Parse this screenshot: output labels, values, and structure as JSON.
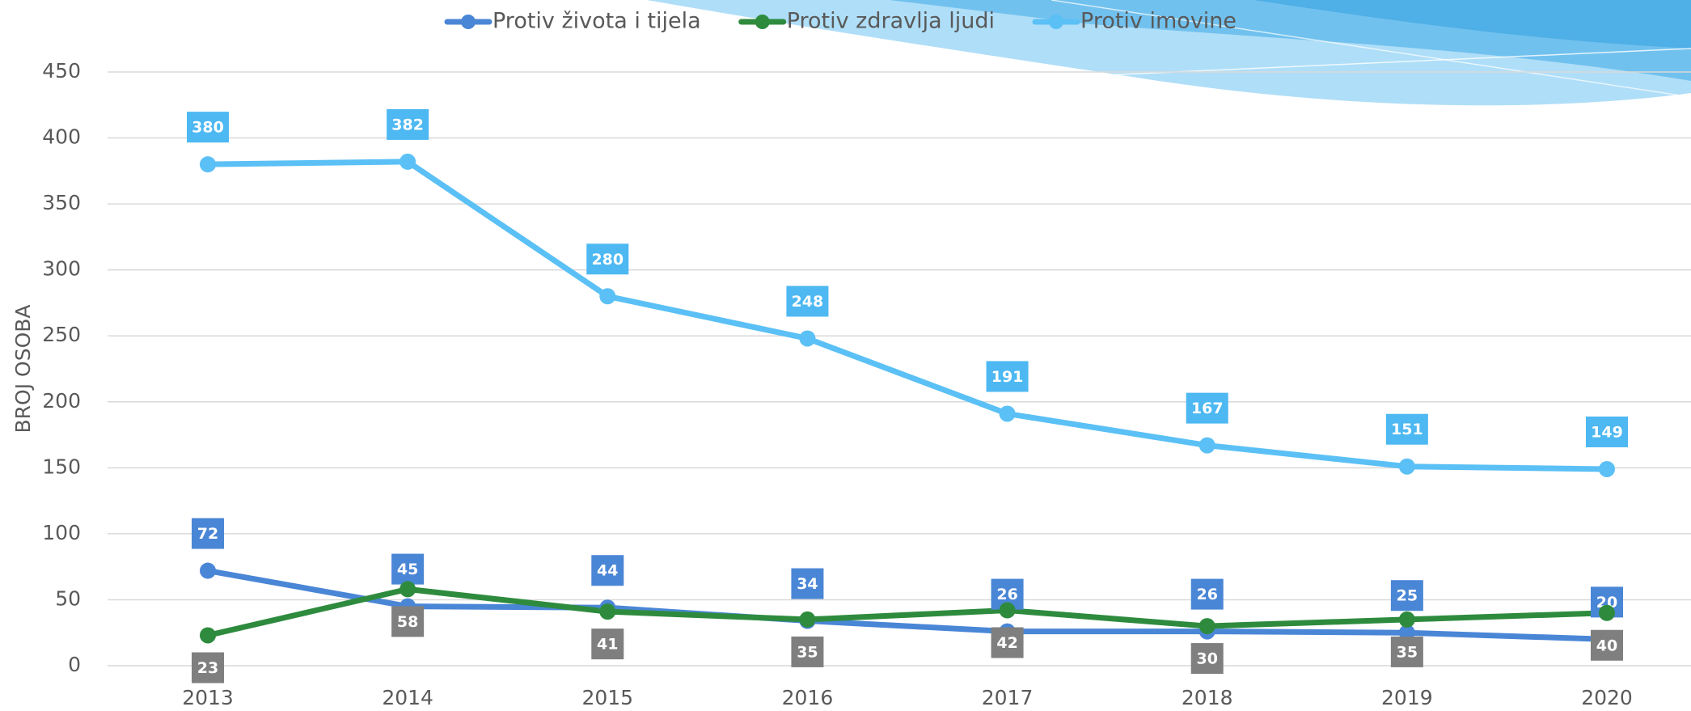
{
  "chart_data": {
    "type": "line",
    "y_label": "BROJ OSOBA",
    "categories": [
      "2013",
      "2014",
      "2015",
      "2016",
      "2017",
      "2018",
      "2019",
      "2020"
    ],
    "series": [
      {
        "name": "Protiv života i tijela",
        "color": "#4a86d6",
        "label_color": "#4a86d6",
        "label_position": "above",
        "values": [
          72,
          45,
          44,
          34,
          26,
          26,
          25,
          20
        ]
      },
      {
        "name": "Protiv zdravlja ljudi",
        "color": "#2e8b3e",
        "label_color": "#7f7f7f",
        "label_position": "below",
        "values": [
          23,
          58,
          41,
          35,
          42,
          30,
          35,
          40
        ]
      },
      {
        "name": "Protiv imovine",
        "color": "#5bc0f5",
        "label_color": "#4db8f2",
        "label_position": "above",
        "values": [
          380,
          382,
          280,
          248,
          191,
          167,
          151,
          149
        ]
      }
    ],
    "ylim": [
      0,
      450
    ],
    "yticks": [
      0,
      50,
      100,
      150,
      200,
      250,
      300,
      350,
      400,
      450
    ],
    "grid": true,
    "legend": "top"
  }
}
